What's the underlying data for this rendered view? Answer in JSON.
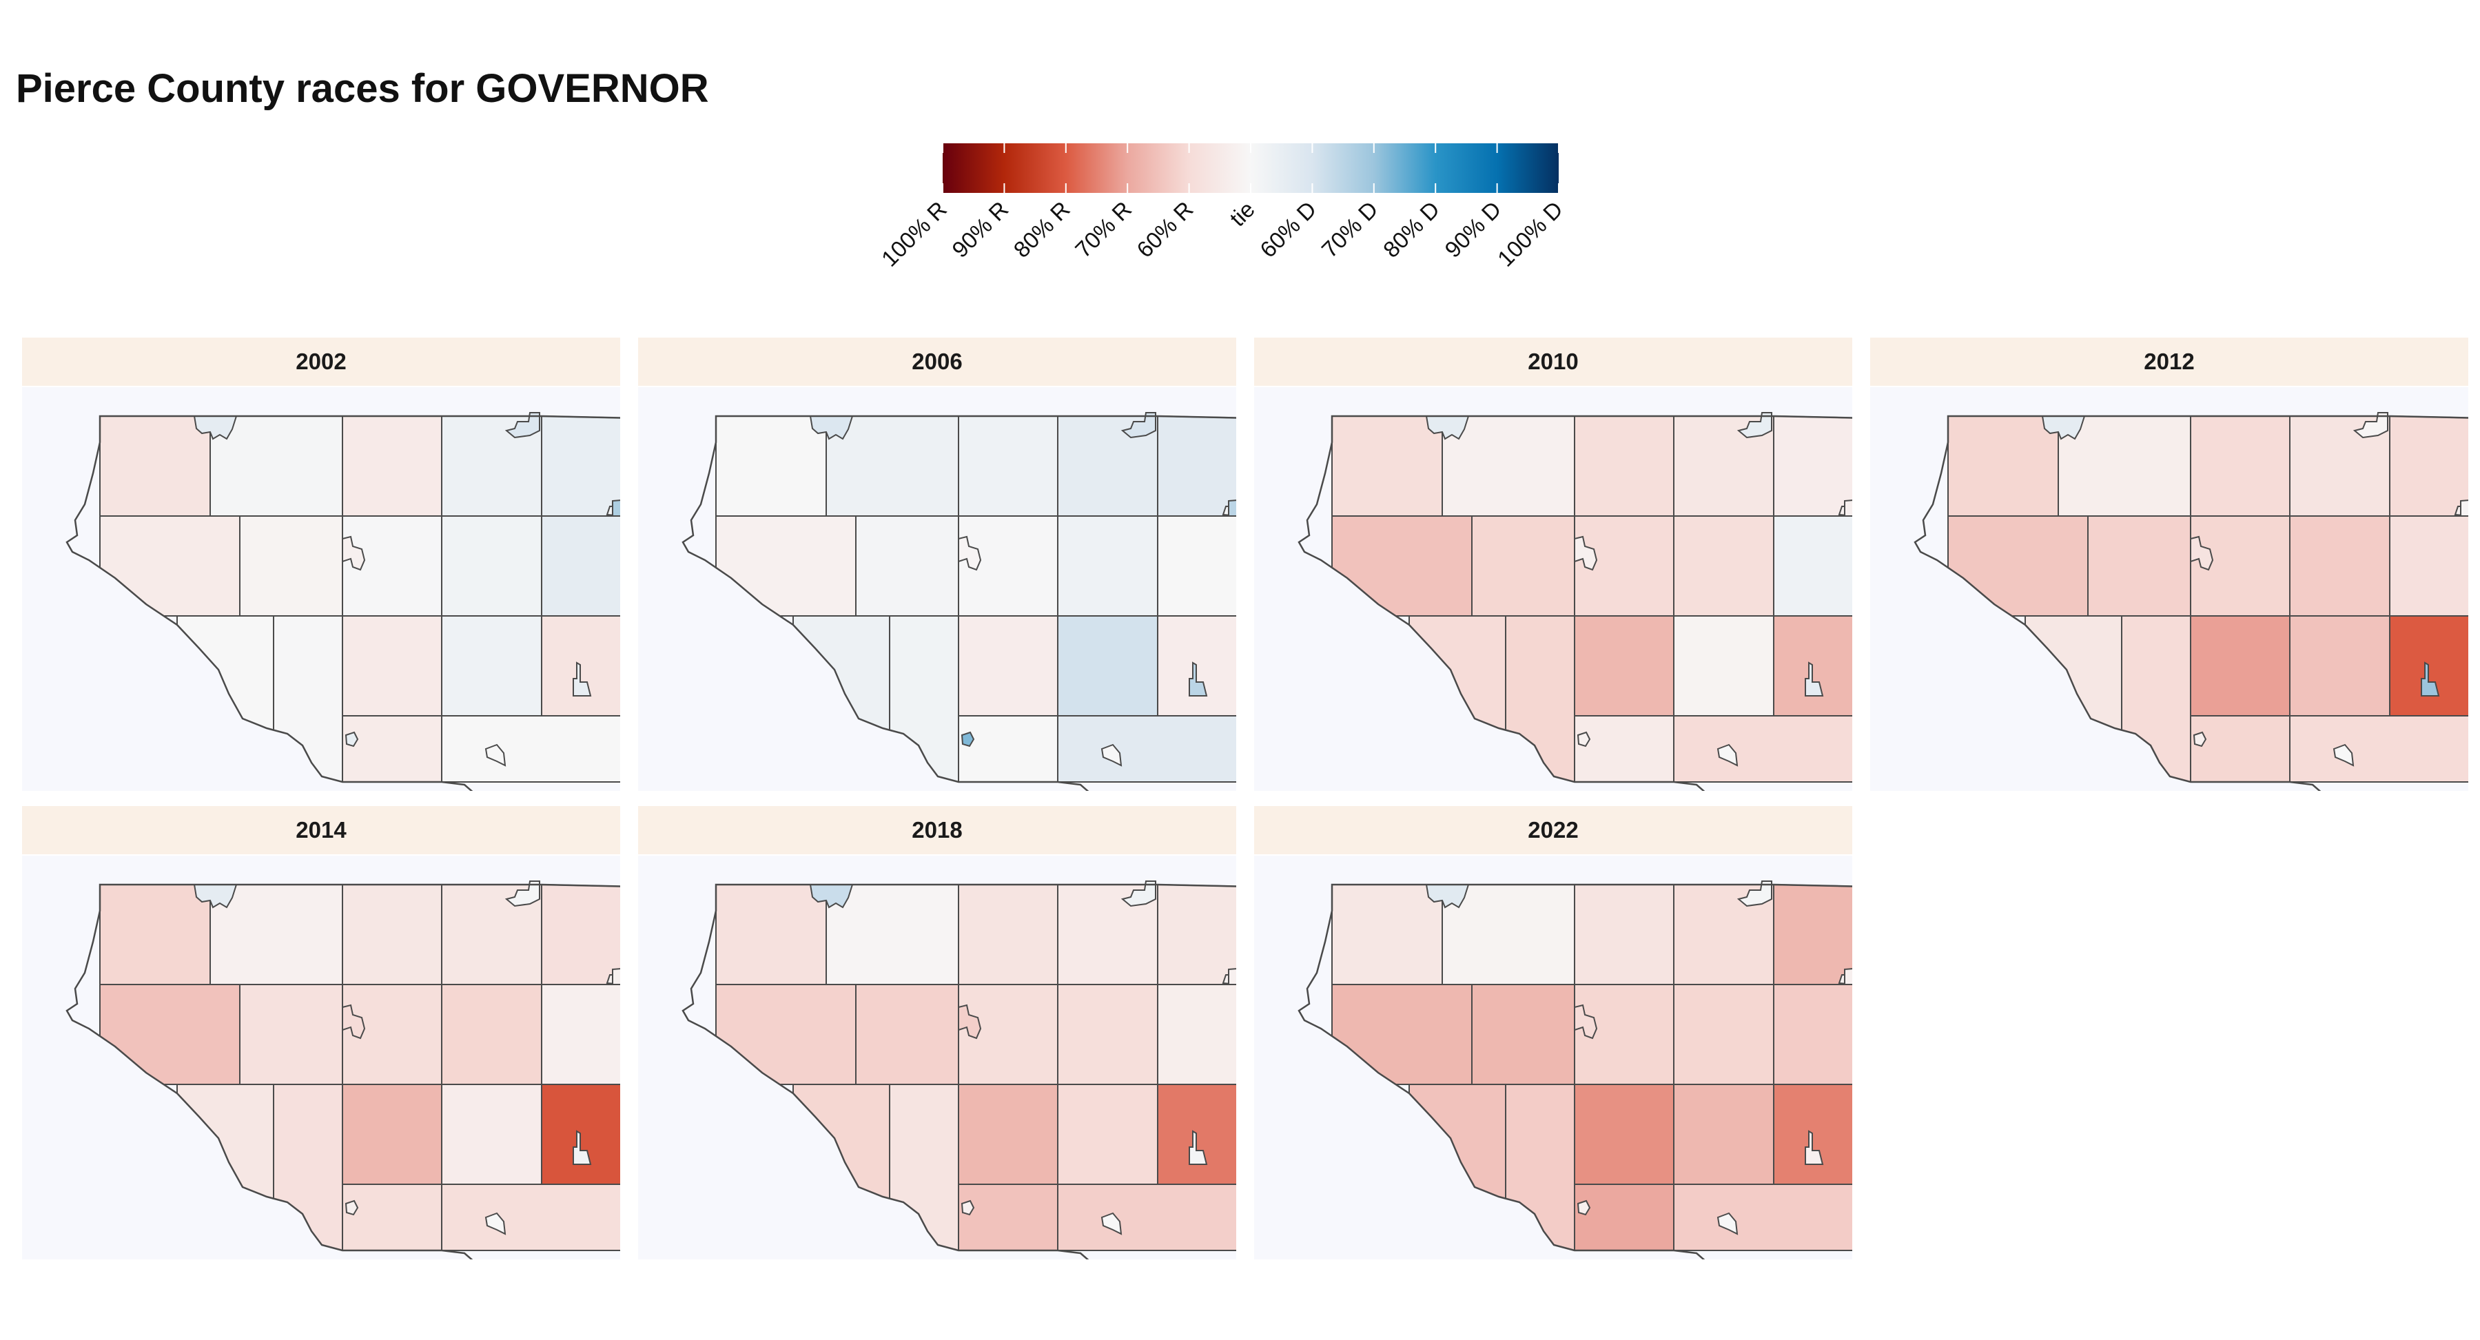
{
  "title": "Pierce County races for GOVERNOR",
  "legend": {
    "labels": [
      "100% R",
      "90% R",
      "80% R",
      "70% R",
      "60% R",
      "tie",
      "60% D",
      "70% D",
      "80% D",
      "90% D",
      "100% D"
    ],
    "stops": [
      {
        "v": -1.0,
        "color": "#67000d"
      },
      {
        "v": -0.8,
        "color": "#b2270b"
      },
      {
        "v": -0.6,
        "color": "#dc5a41"
      },
      {
        "v": -0.4,
        "color": "#eba89f"
      },
      {
        "v": -0.2,
        "color": "#f6dcd8"
      },
      {
        "v": 0.0,
        "color": "#f7f7f7"
      },
      {
        "v": 0.2,
        "color": "#d9e5ef"
      },
      {
        "v": 0.4,
        "color": "#9cc5dd"
      },
      {
        "v": 0.6,
        "color": "#2a94c7"
      },
      {
        "v": 0.8,
        "color": "#0571b0"
      },
      {
        "v": 1.0,
        "color": "#053061"
      }
    ]
  },
  "chart_data": {
    "type": "choropleth",
    "value_meaning": "two-party margin; negative = Republican share, positive = Democratic share",
    "facets": [
      {
        "year": "2002",
        "regions": {
          "rA": -0.14,
          "rB": 0.02,
          "rC": -0.1,
          "rD": 0.07,
          "rE": 0.1,
          "rF": -0.09,
          "rG": -0.03,
          "rH": 0.01,
          "rI": 0.05,
          "rJ": 0.12,
          "rK": 0.0,
          "rL": 0.01,
          "rM": -0.1,
          "rN": 0.06,
          "rO": -0.14,
          "rP": -0.09,
          "rQ": 0.0,
          "tA": 0.12,
          "tB": 0.18,
          "tC": 0.02,
          "tD": 0.34,
          "tE": -0.05,
          "tF": 0.1,
          "tG": 0.1
        }
      },
      {
        "year": "2006",
        "regions": {
          "rA": 0.0,
          "rB": 0.07,
          "rC": 0.06,
          "rD": 0.12,
          "rE": 0.14,
          "rF": -0.05,
          "rG": 0.03,
          "rH": 0.01,
          "rI": 0.06,
          "rJ": 0.0,
          "rK": 0.07,
          "rL": 0.05,
          "rM": -0.08,
          "rN": 0.22,
          "rO": -0.08,
          "rP": 0.0,
          "rQ": 0.14,
          "tA": 0.18,
          "tB": 0.2,
          "tC": 0.02,
          "tD": 0.3,
          "tE": -0.02,
          "tF": 0.3,
          "tG": 0.45
        }
      },
      {
        "year": "2010",
        "regions": {
          "rA": -0.18,
          "rB": -0.05,
          "rC": -0.18,
          "rD": -0.12,
          "rE": -0.08,
          "rF": -0.3,
          "rG": -0.22,
          "rH": -0.2,
          "rI": -0.18,
          "rJ": 0.06,
          "rK": -0.2,
          "rL": -0.22,
          "rM": -0.34,
          "rN": -0.03,
          "rO": -0.34,
          "rP": -0.09,
          "rQ": -0.2,
          "tA": 0.12,
          "tB": 0.1,
          "tC": -0.05,
          "tD": -0.05,
          "tE": -0.05,
          "tF": 0.12,
          "tG": -0.05
        }
      },
      {
        "year": "2012",
        "regions": {
          "rA": -0.22,
          "rB": -0.07,
          "rC": -0.2,
          "rD": -0.14,
          "rE": -0.2,
          "rF": -0.28,
          "rG": -0.24,
          "rH": -0.22,
          "rI": -0.26,
          "rJ": -0.17,
          "rK": -0.12,
          "rL": -0.2,
          "rM": -0.42,
          "rN": -0.3,
          "rO": -0.6,
          "rP": -0.22,
          "rQ": -0.2,
          "tA": 0.12,
          "tB": -0.02,
          "tC": -0.05,
          "tD": -0.02,
          "tE": -0.15,
          "tF": 0.4,
          "tG": -0.05
        }
      },
      {
        "year": "2014",
        "regions": {
          "rA": -0.22,
          "rB": -0.05,
          "rC": -0.12,
          "rD": -0.12,
          "rE": -0.17,
          "rF": -0.3,
          "rG": -0.16,
          "rH": -0.18,
          "rI": -0.22,
          "rJ": -0.06,
          "rK": -0.12,
          "rL": -0.17,
          "rM": -0.34,
          "rN": -0.08,
          "rO": -0.62,
          "rP": -0.18,
          "rQ": -0.18,
          "tA": 0.12,
          "tB": 0.02,
          "tC": -0.05,
          "tD": -0.05,
          "tE": -0.2,
          "tF": 0.05,
          "tG": -0.05
        }
      },
      {
        "year": "2018",
        "regions": {
          "rA": -0.16,
          "rB": -0.02,
          "rC": -0.14,
          "rD": -0.1,
          "rE": -0.12,
          "rF": -0.24,
          "rG": -0.24,
          "rH": -0.18,
          "rI": -0.18,
          "rJ": -0.07,
          "rK": -0.22,
          "rL": -0.14,
          "rM": -0.34,
          "rN": -0.2,
          "rO": -0.52,
          "rP": -0.3,
          "rQ": -0.25,
          "tA": 0.25,
          "tB": 0.05,
          "tC": -0.05,
          "tD": -0.05,
          "tE": -0.25,
          "tF": 0.02,
          "tG": -0.05
        }
      },
      {
        "year": "2022",
        "regions": {
          "rA": -0.12,
          "rB": -0.03,
          "rC": -0.14,
          "rD": -0.18,
          "rE": -0.34,
          "rF": -0.34,
          "rG": -0.34,
          "rH": -0.22,
          "rI": -0.22,
          "rJ": -0.26,
          "rK": -0.3,
          "rL": -0.26,
          "rM": -0.46,
          "rN": -0.34,
          "rO": -0.5,
          "rP": -0.4,
          "rQ": -0.26,
          "tA": 0.15,
          "tB": 0.02,
          "tC": -0.05,
          "tD": -0.05,
          "tE": -0.2,
          "tF": -0.05,
          "tG": -0.05
        }
      }
    ]
  }
}
